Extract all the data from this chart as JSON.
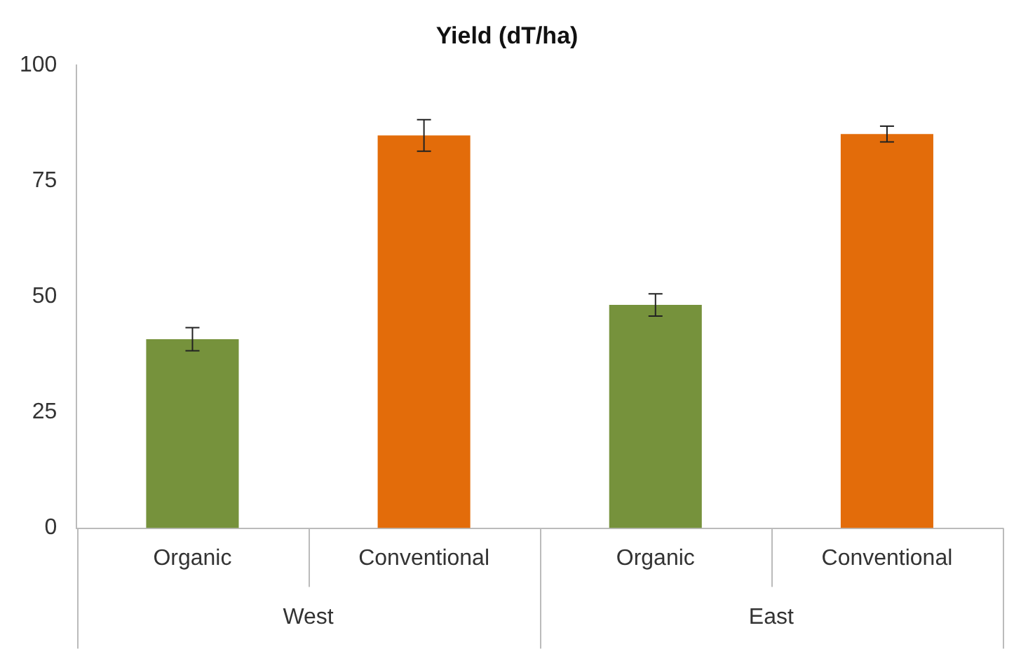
{
  "chart_data": {
    "type": "bar",
    "title": "Yield (dT/ha)",
    "categories": [
      "Organic",
      "Conventional",
      "Organic",
      "Conventional"
    ],
    "values": [
      40.8,
      84.8,
      48.2,
      85.1
    ],
    "colors": [
      "#76923c",
      "#e36c0a",
      "#76923c",
      "#e36c0a"
    ],
    "errors": [
      2.5,
      3.4,
      2.4,
      1.7
    ],
    "ylim": [
      0,
      100
    ],
    "yticks": [
      0,
      25,
      50,
      75,
      100
    ],
    "annotations": [
      "West",
      "East"
    ],
    "grid": false,
    "legend": false
  }
}
